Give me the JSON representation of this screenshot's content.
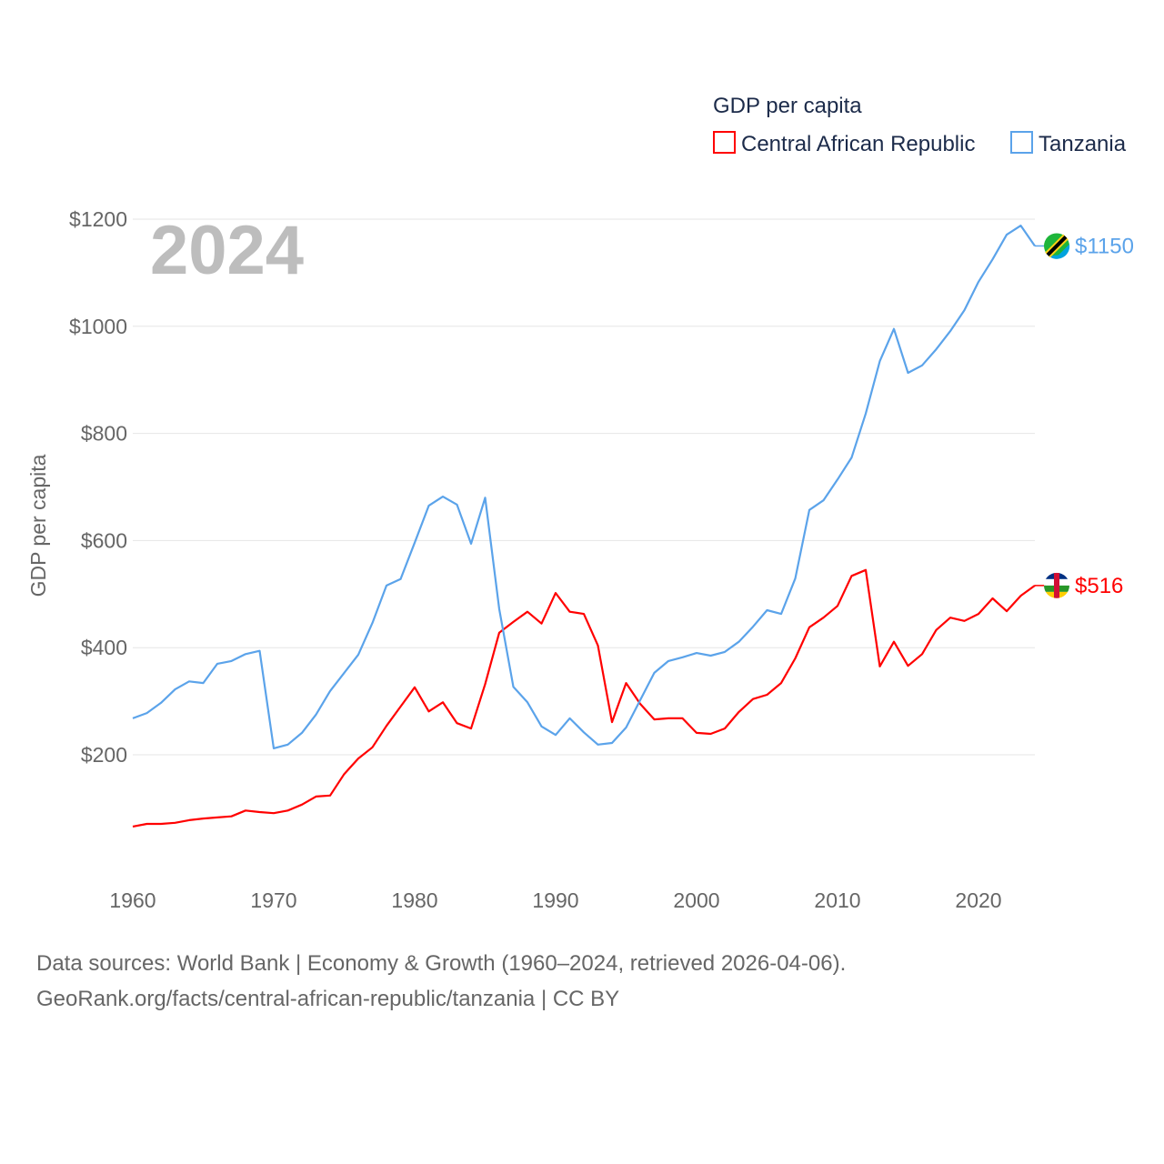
{
  "chart_data": {
    "type": "line",
    "legend_title": "GDP per capita",
    "legend_position": "top-right",
    "ylabel": "GDP per capita",
    "xlabel": "",
    "year_label": "2024",
    "xlim": [
      1960,
      2024
    ],
    "ylim": [
      0,
      1250
    ],
    "x_ticks": [
      1960,
      1970,
      1980,
      1990,
      2000,
      2010,
      2020
    ],
    "y_ticks": [
      200,
      400,
      600,
      800,
      1000,
      1200
    ],
    "y_tick_labels": [
      "$200",
      "$400",
      "$600",
      "$800",
      "$1000",
      "$1200"
    ],
    "grid": true,
    "x": [
      1960,
      1961,
      1962,
      1963,
      1964,
      1965,
      1966,
      1967,
      1968,
      1969,
      1970,
      1971,
      1972,
      1973,
      1974,
      1975,
      1976,
      1977,
      1978,
      1979,
      1980,
      1981,
      1982,
      1983,
      1984,
      1985,
      1986,
      1987,
      1988,
      1989,
      1990,
      1991,
      1992,
      1993,
      1994,
      1995,
      1996,
      1997,
      1998,
      1999,
      2000,
      2001,
      2002,
      2003,
      2004,
      2005,
      2006,
      2007,
      2008,
      2009,
      2010,
      2011,
      2012,
      2013,
      2014,
      2015,
      2016,
      2017,
      2018,
      2019,
      2020,
      2021,
      2022,
      2023,
      2024
    ],
    "series": [
      {
        "name": "Central African Republic",
        "color": "#ff0000",
        "end_label": "$516",
        "values": [
          66,
          71,
          71,
          73,
          78,
          81,
          83,
          85,
          96,
          93,
          91,
          96,
          107,
          122,
          124,
          164,
          193,
          214,
          254,
          290,
          326,
          281,
          298,
          259,
          249,
          332,
          428,
          448,
          467,
          445,
          502,
          467,
          463,
          404,
          261,
          334,
          295,
          266,
          268,
          268,
          241,
          239,
          249,
          280,
          304,
          312,
          334,
          380,
          438,
          456,
          478,
          534,
          545,
          365,
          411,
          366,
          388,
          433,
          456,
          450,
          463,
          492,
          468,
          497,
          516
        ]
      },
      {
        "name": "Tanzania",
        "color": "#5ba3ea",
        "end_label": "$1150",
        "values": [
          268,
          278,
          297,
          322,
          337,
          334,
          370,
          375,
          388,
          394,
          212,
          219,
          241,
          275,
          319,
          353,
          387,
          446,
          516,
          528,
          596,
          665,
          682,
          667,
          594,
          680,
          472,
          327,
          298,
          253,
          237,
          268,
          242,
          219,
          222,
          251,
          302,
          353,
          375,
          382,
          390,
          385,
          392,
          411,
          439,
          470,
          463,
          529,
          657,
          675,
          714,
          755,
          837,
          935,
          995,
          913,
          927,
          957,
          991,
          1030,
          1083,
          1125,
          1171,
          1188,
          1150
        ]
      }
    ]
  },
  "footer": {
    "line1": "Data sources: World Bank | Economy & Growth (1960–2024, retrieved 2026-04-06).",
    "line2": "GeoRank.org/facts/central-african-republic/tanzania | CC BY"
  }
}
